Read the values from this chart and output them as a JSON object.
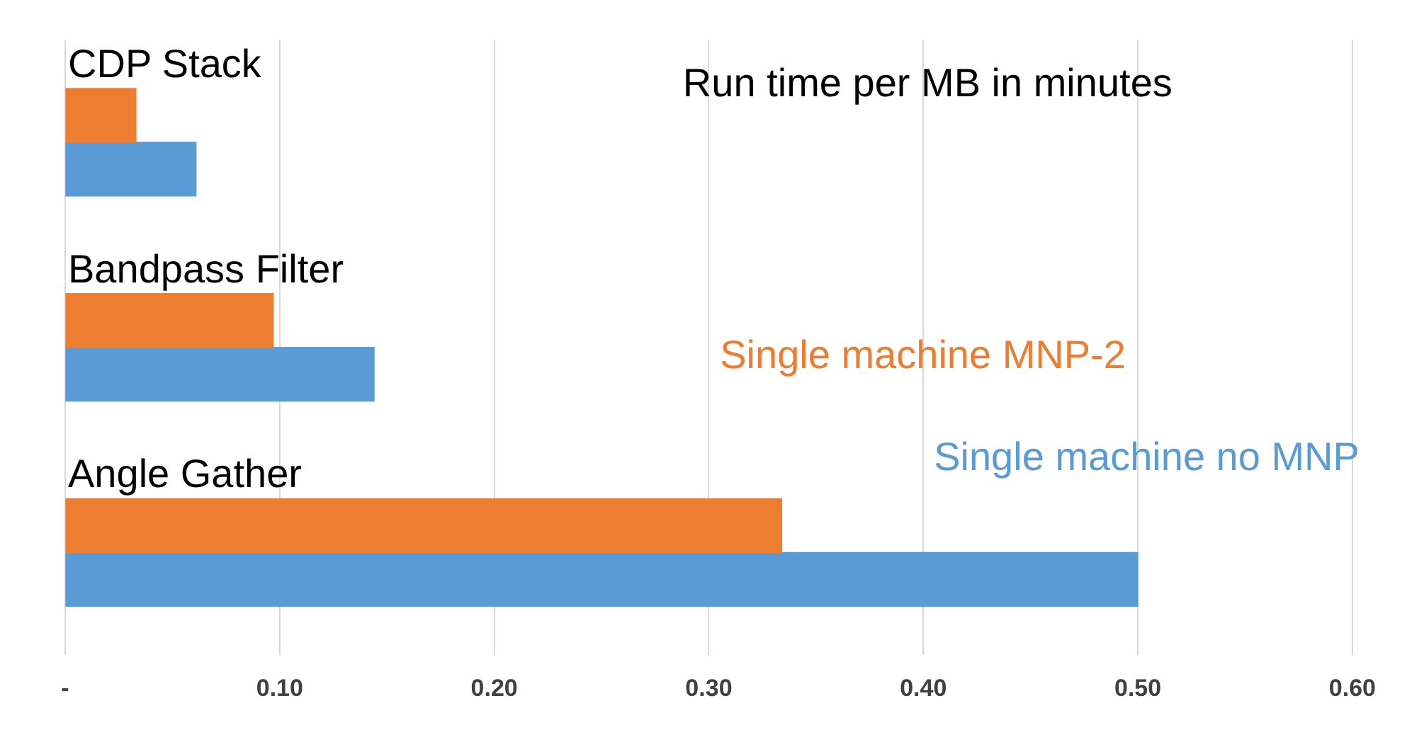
{
  "chart_data": {
    "type": "bar",
    "orientation": "horizontal",
    "title": "Run time per MB in minutes",
    "categories": [
      "CDP Stack",
      "Bandpass Filter",
      "Angle Gather"
    ],
    "series": [
      {
        "name": "Single machine MNP-2",
        "color": "#ed7d31",
        "values": [
          0.033,
          0.097,
          0.334
        ]
      },
      {
        "name": "Single machine no MNP",
        "color": "#5b9bd5",
        "values": [
          0.061,
          0.144,
          0.5
        ]
      }
    ],
    "xlim": [
      0,
      0.6
    ],
    "xticks": [
      {
        "value": 0,
        "label": "-"
      },
      {
        "value": 0.1,
        "label": "0.10"
      },
      {
        "value": 0.2,
        "label": "0.20"
      },
      {
        "value": 0.3,
        "label": "0.30"
      },
      {
        "value": 0.4,
        "label": "0.40"
      },
      {
        "value": 0.5,
        "label": "0.50"
      },
      {
        "value": 0.6,
        "label": "0.60"
      }
    ],
    "grid": "x",
    "legend": "right"
  }
}
